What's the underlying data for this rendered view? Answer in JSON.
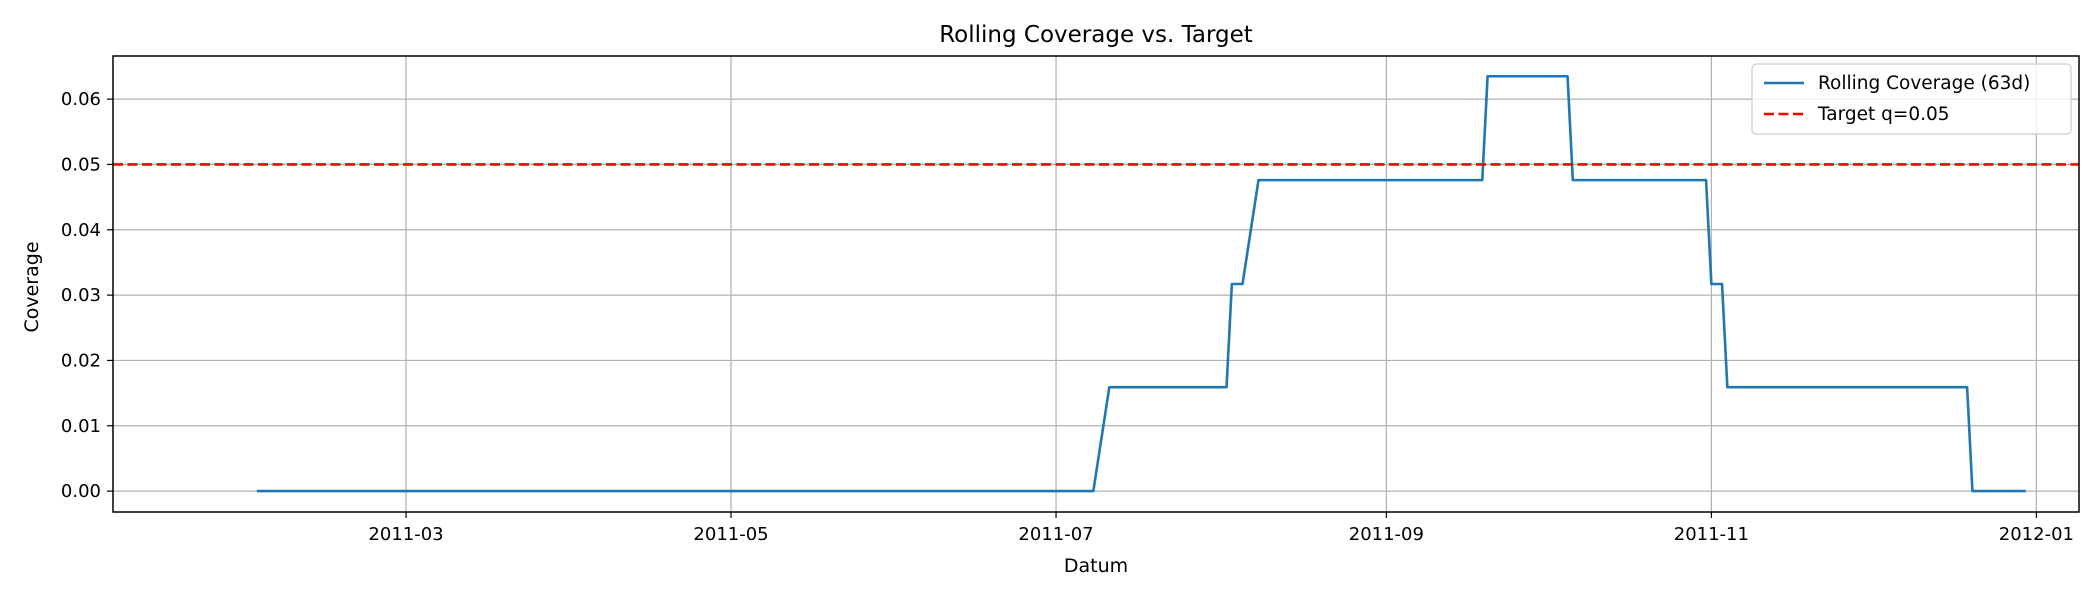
{
  "chart_data": {
    "type": "line",
    "title": "Rolling Coverage vs. Target",
    "xlabel": "Datum",
    "ylabel": "Coverage",
    "xlim": [
      "2011-01-05",
      "2012-01-09"
    ],
    "ylim": [
      -0.0032,
      0.0666
    ],
    "x_ticks": [
      "2011-03-01",
      "2011-05-01",
      "2011-07-01",
      "2011-09-01",
      "2011-11-01",
      "2012-01-01"
    ],
    "x_tick_labels": [
      "2011-03",
      "2011-05",
      "2011-07",
      "2011-09",
      "2011-11",
      "2012-01"
    ],
    "y_ticks": [
      0.0,
      0.01,
      0.02,
      0.03,
      0.04,
      0.05,
      0.06
    ],
    "y_tick_labels": [
      "0.00",
      "0.01",
      "0.02",
      "0.03",
      "0.04",
      "0.05",
      "0.06"
    ],
    "grid": true,
    "legend_position": "top-right",
    "series": [
      {
        "name": "Rolling Coverage (63d)",
        "color": "#1f77b4",
        "style": "solid",
        "points": [
          [
            "2011-02-01",
            0.0
          ],
          [
            "2011-07-08",
            0.0
          ],
          [
            "2011-07-11",
            0.0159
          ],
          [
            "2011-08-02",
            0.0159
          ],
          [
            "2011-08-03",
            0.0317
          ],
          [
            "2011-08-05",
            0.0317
          ],
          [
            "2011-08-08",
            0.0476
          ],
          [
            "2011-09-19",
            0.0476
          ],
          [
            "2011-09-20",
            0.0635
          ],
          [
            "2011-10-05",
            0.0635
          ],
          [
            "2011-10-06",
            0.0476
          ],
          [
            "2011-10-31",
            0.0476
          ],
          [
            "2011-11-01",
            0.0317
          ],
          [
            "2011-11-03",
            0.0317
          ],
          [
            "2011-11-04",
            0.0159
          ],
          [
            "2011-12-19",
            0.0159
          ],
          [
            "2011-12-20",
            0.0
          ],
          [
            "2011-12-30",
            0.0
          ]
        ]
      },
      {
        "name": "Target q=0.05",
        "color": "#ff0000",
        "style": "dashed",
        "hline": 0.05
      }
    ]
  }
}
